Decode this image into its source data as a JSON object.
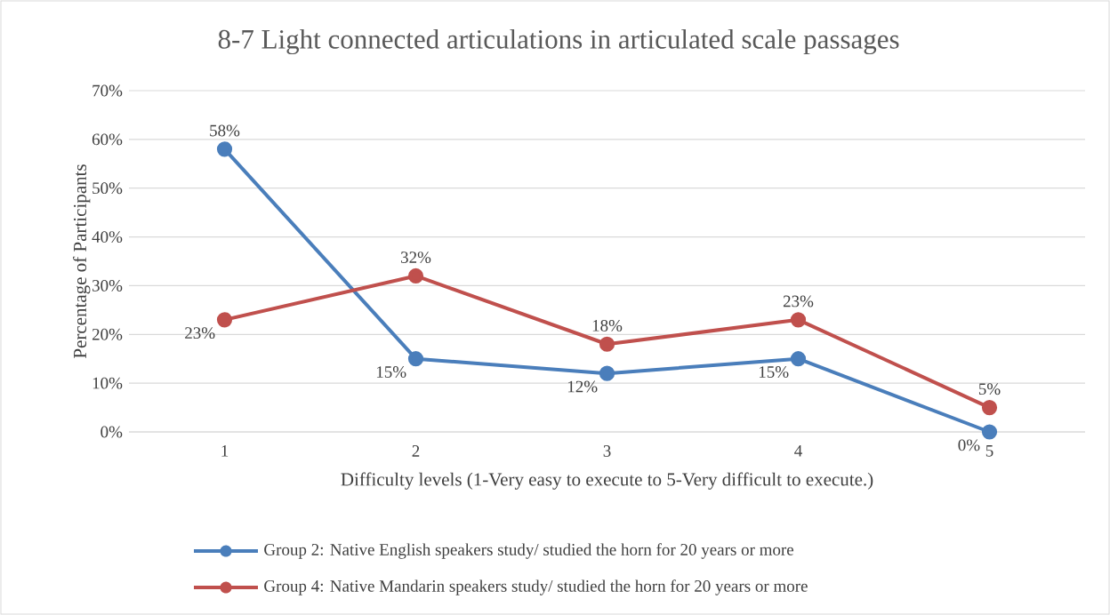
{
  "chart_data": {
    "type": "line",
    "title": "8-7 Light connected articulations in articulated scale passages",
    "xlabel": "Difficulty levels (1-Very easy to execute to 5-Very difficult to execute.)",
    "ylabel": "Percentage of Participants",
    "categories": [
      "1",
      "2",
      "3",
      "4",
      "5"
    ],
    "series": [
      {
        "name": "Group 2: Native English speakers study/ studied the horn for 20 years or more",
        "color": "#4a7ebb",
        "values": [
          58,
          15,
          12,
          15,
          0
        ],
        "value_labels": [
          "58%",
          "15%",
          "12%",
          "15%",
          "0%"
        ]
      },
      {
        "name": "Group 4: Native Mandarin speakers study/ studied the horn for 20 years or more",
        "color": "#c0504d",
        "values": [
          23,
          32,
          18,
          23,
          5
        ],
        "value_labels": [
          "23%",
          "32%",
          "18%",
          "23%",
          "5%"
        ]
      }
    ],
    "ylim": [
      0,
      70
    ],
    "yticks": [
      {
        "value": 0,
        "label": "0%"
      },
      {
        "value": 10,
        "label": "10%"
      },
      {
        "value": 20,
        "label": "20%"
      },
      {
        "value": 30,
        "label": "30%"
      },
      {
        "value": 40,
        "label": "40%"
      },
      {
        "value": 50,
        "label": "50%"
      },
      {
        "value": 60,
        "label": "60%"
      },
      {
        "value": 70,
        "label": "70%"
      }
    ],
    "grid": "y",
    "legend": "bottom",
    "marker": "circle",
    "line_style": "solid"
  }
}
